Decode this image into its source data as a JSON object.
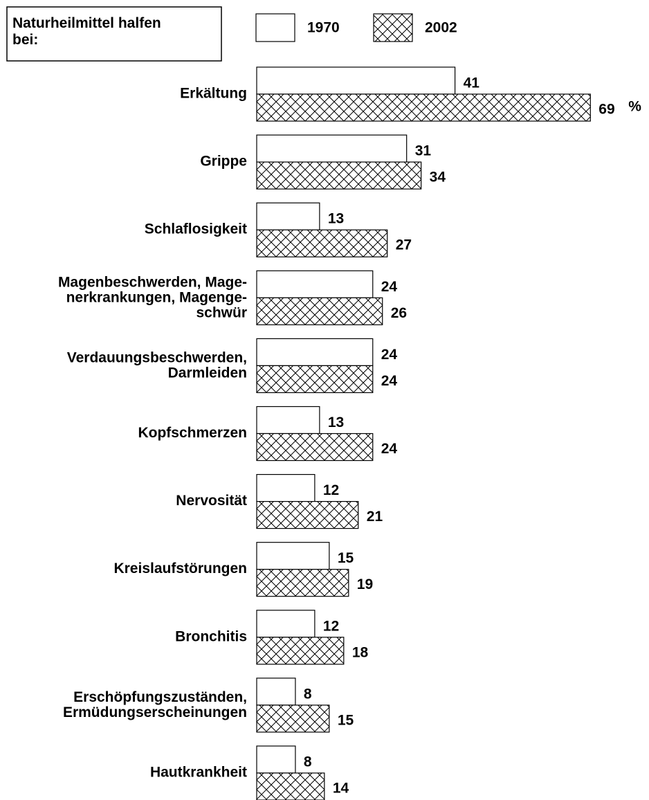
{
  "chart_data": {
    "type": "barh",
    "title": "Naturheilmittel halfen\nbei:",
    "unit_label": "%",
    "categories": [
      "Erkältung",
      "Grippe",
      "Schlaflosigkeit",
      "Magenbeschwerden, Mage-\nnerkrankungen, Magenge-\nschwür",
      "Verdauungsbeschwerden,\nDarmleiden",
      "Kopfschmerzen",
      "Nervosität",
      "Kreislaufstörungen",
      "Bronchitis",
      "Erschöpfungszuständen,\nErmüdungserscheinungen",
      "Hautkrankheit"
    ],
    "series": [
      {
        "name": "1970",
        "color": "#ffffff",
        "hatch": "none",
        "values": [
          41,
          31,
          13,
          24,
          24,
          13,
          12,
          15,
          12,
          8,
          8
        ]
      },
      {
        "name": "2002",
        "color": "#ffffff",
        "hatch": "crosshatch",
        "values": [
          69,
          34,
          27,
          26,
          24,
          24,
          21,
          19,
          18,
          15,
          14
        ]
      }
    ],
    "legend": "top"
  }
}
